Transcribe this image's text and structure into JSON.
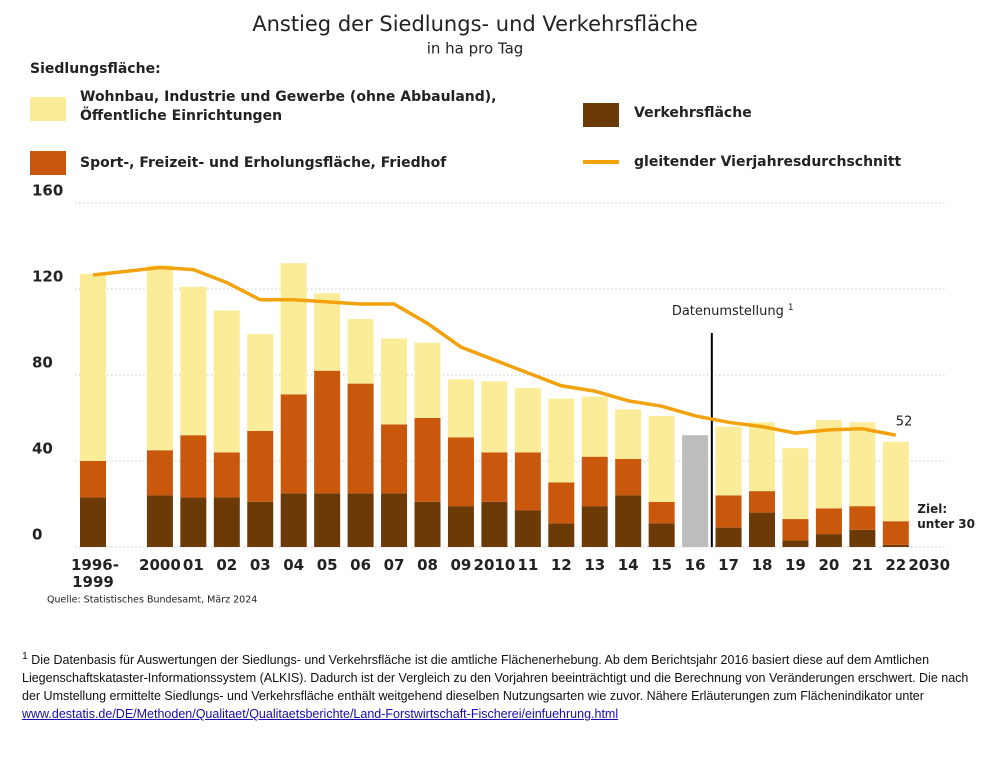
{
  "chart_data": {
    "type": "bar",
    "title": "Anstieg der Siedlungs- und Verkehrsfläche",
    "subtitle": "in ha pro Tag",
    "legend_title": "Siedlungsfläche:",
    "categories": [
      "1996-1999",
      "2000",
      "01",
      "02",
      "03",
      "04",
      "05",
      "06",
      "07",
      "08",
      "09",
      "2010",
      "11",
      "12",
      "13",
      "14",
      "15",
      "16",
      "17",
      "18",
      "19",
      "20",
      "21",
      "22",
      "2030"
    ],
    "series": [
      {
        "name": "Wohnbau, Industrie und Gewerbe (ohne Abbauland),\nÖffentliche Einrichtungen",
        "type": "bar",
        "color": "#faec98",
        "values": [
          87,
          86,
          69,
          66,
          45,
          61,
          36,
          30,
          40,
          35,
          27,
          33,
          30,
          39,
          28,
          23,
          40,
          null,
          32,
          32,
          33,
          41,
          39,
          37,
          null
        ]
      },
      {
        "name": "Sport-, Freizeit- und Erholungsfläche, Friedhof",
        "type": "bar",
        "color": "#c9580c",
        "values": [
          17,
          21,
          29,
          21,
          33,
          46,
          57,
          51,
          32,
          39,
          32,
          23,
          27,
          19,
          23,
          17,
          10,
          null,
          15,
          10,
          10,
          12,
          11,
          11,
          null
        ]
      },
      {
        "name": "Verkehrsfläche",
        "type": "bar",
        "color": "#6b3a06",
        "values": [
          23,
          24,
          23,
          23,
          21,
          25,
          25,
          25,
          25,
          21,
          19,
          21,
          17,
          11,
          19,
          24,
          11,
          null,
          9,
          16,
          3,
          6,
          8,
          1,
          null
        ]
      },
      {
        "type": "bar",
        "color": "#bdbdbd",
        "values": [
          null,
          null,
          null,
          null,
          null,
          null,
          null,
          null,
          null,
          null,
          null,
          null,
          null,
          null,
          null,
          null,
          null,
          52,
          null,
          null,
          null,
          null,
          null,
          null,
          null
        ]
      },
      {
        "name": "gleitender Vierjahresdurchschnitt",
        "type": "line",
        "color": "#f2a20c",
        "values": [
          126.5,
          130,
          129,
          123,
          115,
          115,
          114,
          113,
          113,
          104,
          93,
          87,
          81,
          75,
          72.5,
          68,
          65.5,
          61,
          58,
          56,
          53,
          54.5,
          55,
          52,
          null
        ],
        "value_labels": [
          null,
          null,
          null,
          null,
          null,
          null,
          null,
          null,
          null,
          null,
          null,
          null,
          null,
          null,
          null,
          null,
          null,
          null,
          null,
          null,
          null,
          null,
          null,
          "52",
          null
        ]
      }
    ],
    "ylim": [
      0,
      160
    ],
    "yticks": [
      0,
      40,
      80,
      120,
      160
    ],
    "grid": true,
    "annotations": {
      "break": {
        "text": "Datenumstellung",
        "marker": "1"
      },
      "target": "Ziel:\nunter 30"
    },
    "source": "Quelle: Statistisches Bundesamt, März 2024"
  },
  "footnote": {
    "marker": "1",
    "text": "Die Datenbasis für Auswertungen der Siedlungs- und Verkehrsfläche ist die amtliche Flächenerhebung. Ab dem Berichtsjahr 2016 basiert diese auf dem Amtlichen Liegenschaftskataster-Informationssystem (ALKIS). Dadurch ist der Vergleich zu den Vorjahren beeinträchtigt und die Berechnung von Veränderungen erschwert. Die nach der Umstellung ermittelte Siedlungs- und Verkehrsfläche enthält weitgehend dieselben Nutzungsarten wie zuvor. Nähere Erläuterungen zum Flächenindikator unter ",
    "link": "www.destatis.de/DE/Methoden/Qualitaet/Qualitaetsberichte/Land-Forstwirtschaft-Fischerei/einfuehrung.html"
  }
}
